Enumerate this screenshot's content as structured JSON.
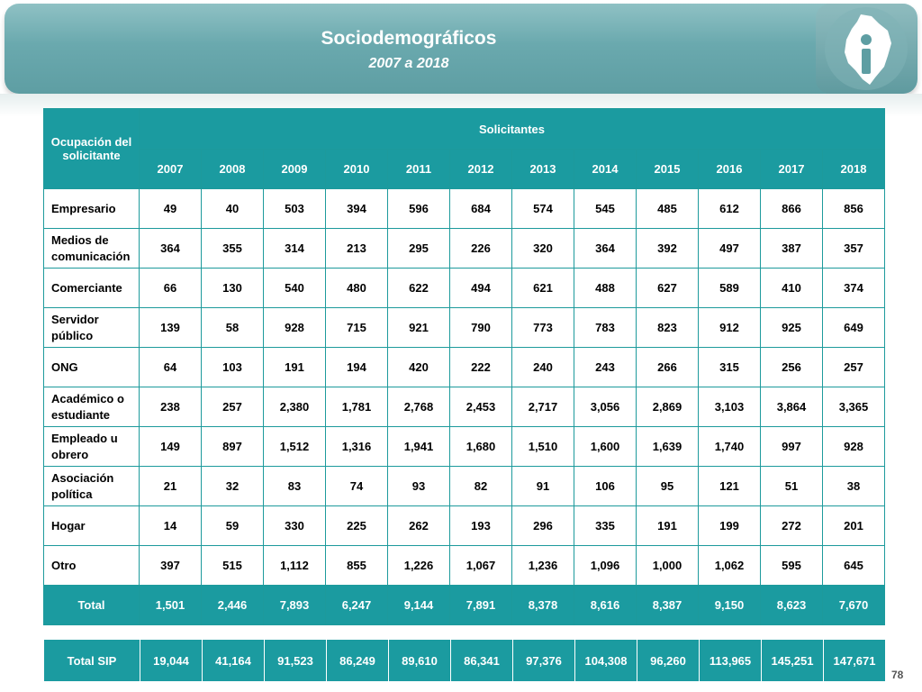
{
  "header": {
    "title": "Sociodemográficos",
    "subtitle": "2007 a 2018"
  },
  "table": {
    "row_header_label": "Ocupación del solicitante",
    "group_header_label": "Solicitantes",
    "years": [
      "2007",
      "2008",
      "2009",
      "2010",
      "2011",
      "2012",
      "2013",
      "2014",
      "2015",
      "2016",
      "2017",
      "2018"
    ],
    "rows": [
      {
        "label": "Empresario",
        "values": [
          "49",
          "40",
          "503",
          "394",
          "596",
          "684",
          "574",
          "545",
          "485",
          "612",
          "866",
          "856"
        ]
      },
      {
        "label": "Medios de comunicación",
        "values": [
          "364",
          "355",
          "314",
          "213",
          "295",
          "226",
          "320",
          "364",
          "392",
          "497",
          "387",
          "357"
        ]
      },
      {
        "label": "Comerciante",
        "values": [
          "66",
          "130",
          "540",
          "480",
          "622",
          "494",
          "621",
          "488",
          "627",
          "589",
          "410",
          "374"
        ]
      },
      {
        "label": "Servidor público",
        "values": [
          "139",
          "58",
          "928",
          "715",
          "921",
          "790",
          "773",
          "783",
          "823",
          "912",
          "925",
          "649"
        ]
      },
      {
        "label": "ONG",
        "values": [
          "64",
          "103",
          "191",
          "194",
          "420",
          "222",
          "240",
          "243",
          "266",
          "315",
          "256",
          "257"
        ]
      },
      {
        "label": "Académico o estudiante",
        "values": [
          "238",
          "257",
          "2,380",
          "1,781",
          "2,768",
          "2,453",
          "2,717",
          "3,056",
          "2,869",
          "3,103",
          "3,864",
          "3,365"
        ]
      },
      {
        "label": "Empleado u obrero",
        "values": [
          "149",
          "897",
          "1,512",
          "1,316",
          "1,941",
          "1,680",
          "1,510",
          "1,600",
          "1,639",
          "1,740",
          "997",
          "928"
        ]
      },
      {
        "label": "Asociación política",
        "values": [
          "21",
          "32",
          "83",
          "74",
          "93",
          "82",
          "91",
          "106",
          "95",
          "121",
          "51",
          "38"
        ]
      },
      {
        "label": "Hogar",
        "values": [
          "14",
          "59",
          "330",
          "225",
          "262",
          "193",
          "296",
          "335",
          "191",
          "199",
          "272",
          "201"
        ]
      },
      {
        "label": "Otro",
        "values": [
          "397",
          "515",
          "1,112",
          "855",
          "1,226",
          "1,067",
          "1,236",
          "1,096",
          "1,000",
          "1,062",
          "595",
          "645"
        ]
      }
    ],
    "total": {
      "label": "Total",
      "values": [
        "1,501",
        "2,446",
        "7,893",
        "6,247",
        "9,144",
        "7,891",
        "8,378",
        "8,616",
        "8,387",
        "9,150",
        "8,623",
        "7,670"
      ]
    }
  },
  "sip": {
    "label": "Total SIP",
    "values": [
      "19,044",
      "41,164",
      "91,523",
      "86,249",
      "89,610",
      "86,341",
      "97,376",
      "104,308",
      "96,260",
      "113,965",
      "145,251",
      "147,671"
    ]
  },
  "footer": {
    "page_number": "78"
  },
  "colors": {
    "teal_header": "#1b9ba0",
    "banner": "#6aa9ae"
  },
  "icons": {
    "logo": "cdmx-map-info-logo-icon"
  }
}
